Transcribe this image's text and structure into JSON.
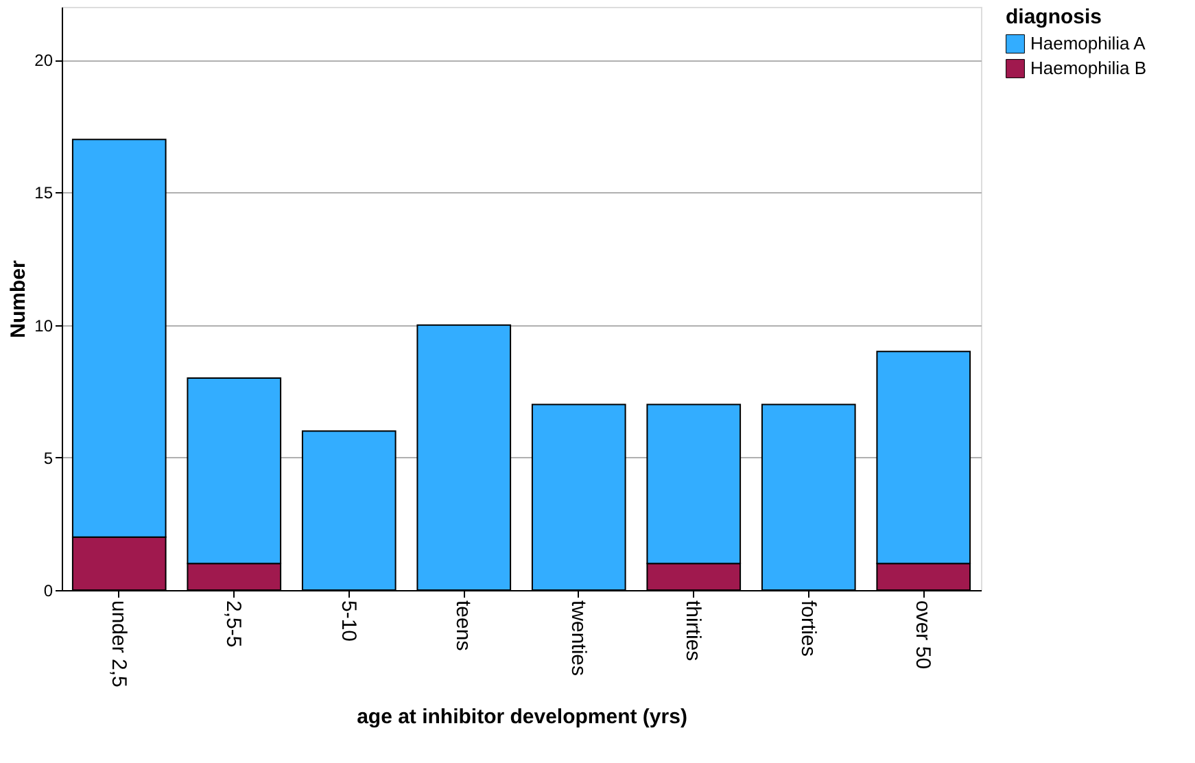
{
  "chart_data": {
    "type": "bar",
    "xlabel": "age at inhibitor development (yrs)",
    "ylabel": "Number",
    "legend_title": "diagnosis",
    "categories": [
      "under 2,5",
      "2,5-5",
      "5-10",
      "teens",
      "twenties",
      "thirties",
      "forties",
      "over 50"
    ],
    "stacked": true,
    "series": [
      {
        "name": "Haemophilia B",
        "color": "#a0194e",
        "values": [
          2,
          1,
          0,
          0,
          0,
          1,
          0,
          1
        ]
      },
      {
        "name": "Haemophilia A",
        "color": "#33adff",
        "values": [
          15,
          7,
          6,
          10,
          7,
          6,
          7,
          8
        ]
      }
    ],
    "ylim": [
      0,
      22
    ],
    "yticks": [
      0,
      5,
      10,
      15,
      20
    ],
    "grid": "y",
    "legend": "top right"
  }
}
